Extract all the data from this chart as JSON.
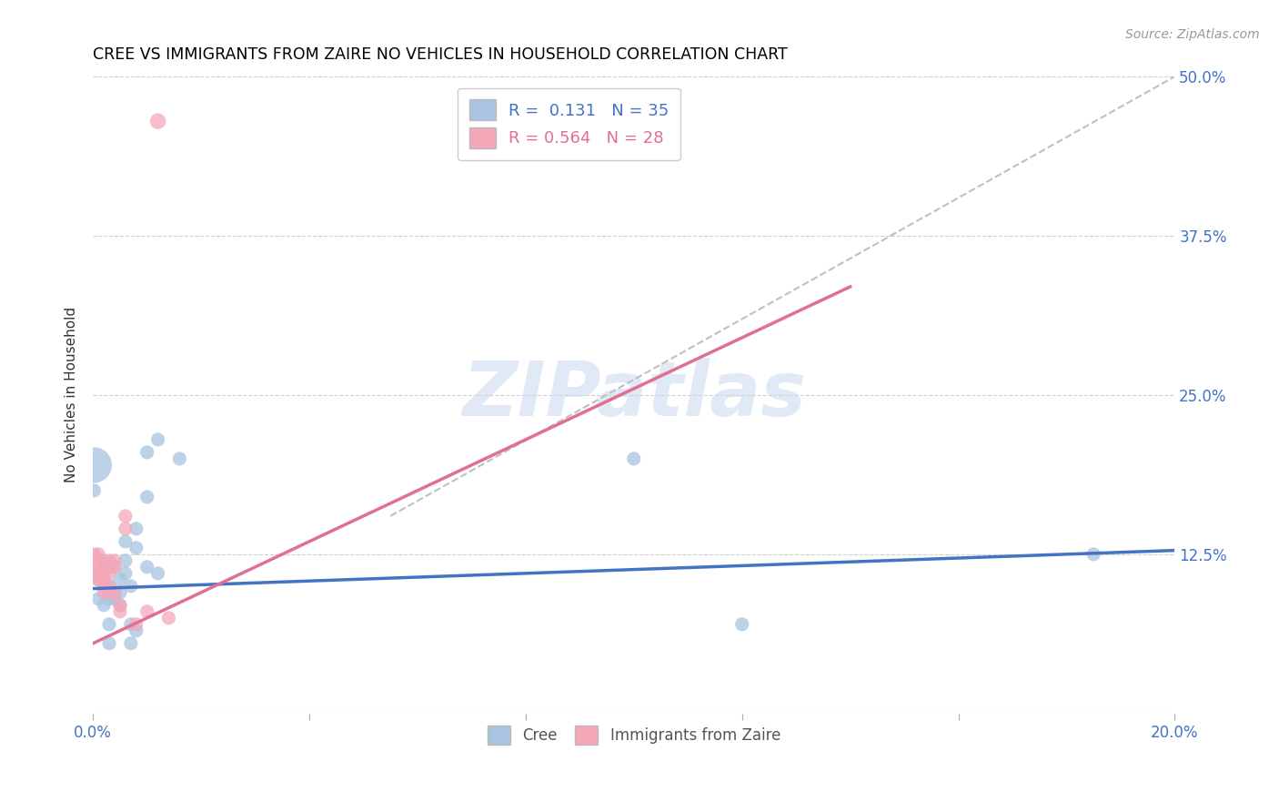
{
  "title": "CREE VS IMMIGRANTS FROM ZAIRE NO VEHICLES IN HOUSEHOLD CORRELATION CHART",
  "source": "Source: ZipAtlas.com",
  "ylabel": "No Vehicles in Household",
  "xlim": [
    0.0,
    0.2
  ],
  "ylim": [
    0.0,
    0.5
  ],
  "xticks": [
    0.0,
    0.04,
    0.08,
    0.12,
    0.16,
    0.2
  ],
  "yticks": [
    0.0,
    0.125,
    0.25,
    0.375,
    0.5
  ],
  "ytick_labels_right": [
    "",
    "12.5%",
    "25.0%",
    "37.5%",
    "50.0%"
  ],
  "xtick_labels": [
    "0.0%",
    "",
    "",
    "",
    "",
    "20.0%"
  ],
  "background_color": "#ffffff",
  "grid_color": "#d0d0d0",
  "watermark": "ZIPatlas",
  "legend_R1": "R =  0.131",
  "legend_N1": "N = 35",
  "legend_R2": "R = 0.564",
  "legend_N2": "N = 28",
  "cree_color": "#a8c4e0",
  "zaire_color": "#f4a7b9",
  "cree_line_color": "#4472c4",
  "zaire_line_color": "#e07090",
  "trend_dash_color": "#c0c0c0",
  "cree_points": [
    [
      0.0002,
      0.195
    ],
    [
      0.0002,
      0.175
    ],
    [
      0.001,
      0.105
    ],
    [
      0.001,
      0.09
    ],
    [
      0.002,
      0.12
    ],
    [
      0.002,
      0.1
    ],
    [
      0.002,
      0.085
    ],
    [
      0.003,
      0.1
    ],
    [
      0.003,
      0.09
    ],
    [
      0.003,
      0.07
    ],
    [
      0.003,
      0.055
    ],
    [
      0.004,
      0.115
    ],
    [
      0.004,
      0.095
    ],
    [
      0.004,
      0.09
    ],
    [
      0.005,
      0.105
    ],
    [
      0.005,
      0.095
    ],
    [
      0.005,
      0.085
    ],
    [
      0.006,
      0.135
    ],
    [
      0.006,
      0.12
    ],
    [
      0.006,
      0.11
    ],
    [
      0.007,
      0.1
    ],
    [
      0.007,
      0.07
    ],
    [
      0.007,
      0.055
    ],
    [
      0.008,
      0.145
    ],
    [
      0.008,
      0.13
    ],
    [
      0.008,
      0.065
    ],
    [
      0.01,
      0.205
    ],
    [
      0.01,
      0.17
    ],
    [
      0.01,
      0.115
    ],
    [
      0.012,
      0.215
    ],
    [
      0.012,
      0.11
    ],
    [
      0.016,
      0.2
    ],
    [
      0.1,
      0.2
    ],
    [
      0.12,
      0.07
    ],
    [
      0.185,
      0.125
    ]
  ],
  "cree_sizes": [
    800,
    120,
    120,
    120,
    120,
    120,
    120,
    120,
    120,
    120,
    120,
    120,
    120,
    120,
    120,
    120,
    120,
    120,
    120,
    120,
    120,
    120,
    120,
    120,
    120,
    120,
    120,
    120,
    120,
    120,
    120,
    120,
    120,
    120,
    120
  ],
  "zaire_points": [
    [
      0.0002,
      0.125
    ],
    [
      0.0002,
      0.115
    ],
    [
      0.0002,
      0.11
    ],
    [
      0.001,
      0.125
    ],
    [
      0.001,
      0.12
    ],
    [
      0.001,
      0.11
    ],
    [
      0.001,
      0.105
    ],
    [
      0.002,
      0.115
    ],
    [
      0.002,
      0.11
    ],
    [
      0.002,
      0.105
    ],
    [
      0.002,
      0.1
    ],
    [
      0.002,
      0.095
    ],
    [
      0.003,
      0.12
    ],
    [
      0.003,
      0.115
    ],
    [
      0.003,
      0.11
    ],
    [
      0.003,
      0.1
    ],
    [
      0.003,
      0.095
    ],
    [
      0.004,
      0.12
    ],
    [
      0.004,
      0.115
    ],
    [
      0.004,
      0.095
    ],
    [
      0.005,
      0.085
    ],
    [
      0.005,
      0.08
    ],
    [
      0.006,
      0.155
    ],
    [
      0.006,
      0.145
    ],
    [
      0.008,
      0.07
    ],
    [
      0.01,
      0.08
    ],
    [
      0.014,
      0.075
    ],
    [
      0.012,
      0.465
    ]
  ],
  "zaire_sizes": [
    120,
    120,
    120,
    120,
    120,
    120,
    120,
    120,
    120,
    120,
    120,
    120,
    120,
    120,
    120,
    120,
    120,
    120,
    120,
    120,
    120,
    120,
    120,
    120,
    120,
    120,
    120,
    160
  ],
  "cree_line_x": [
    0.0,
    0.2
  ],
  "cree_line_y": [
    0.098,
    0.128
  ],
  "zaire_line_x": [
    0.0,
    0.14
  ],
  "zaire_line_y": [
    0.055,
    0.335
  ],
  "dash_line_x": [
    0.055,
    0.2
  ],
  "dash_line_y": [
    0.155,
    0.5
  ]
}
